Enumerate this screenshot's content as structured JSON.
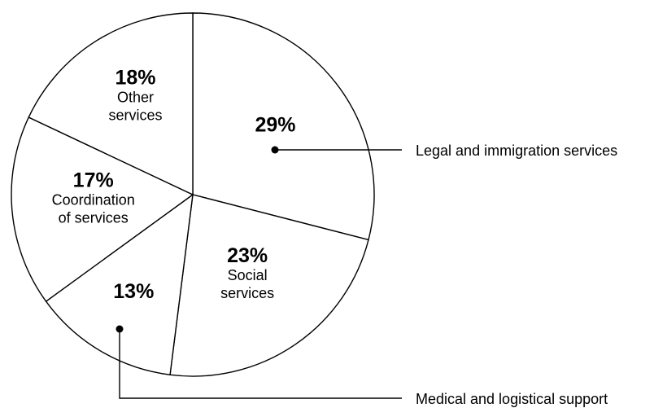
{
  "chart_data": {
    "type": "pie",
    "slices": [
      {
        "label_lines": [],
        "value": 29,
        "value_label": "29%",
        "callout": "Legal and immigration services"
      },
      {
        "label_lines": [
          "Social",
          "services"
        ],
        "value": 23,
        "value_label": "23%",
        "callout": ""
      },
      {
        "label_lines": [],
        "value": 13,
        "value_label": "13%",
        "callout": "Medical and logistical support"
      },
      {
        "label_lines": [
          "Coordination",
          "of services"
        ],
        "value": 17,
        "value_label": "17%",
        "callout": ""
      },
      {
        "label_lines": [
          "Other",
          "services"
        ],
        "value": 18,
        "value_label": "18%",
        "callout": ""
      }
    ],
    "start_angle_deg": 0,
    "direction": "clockwise",
    "colors": {
      "fill": "#ffffff",
      "stroke": "#000000"
    }
  }
}
